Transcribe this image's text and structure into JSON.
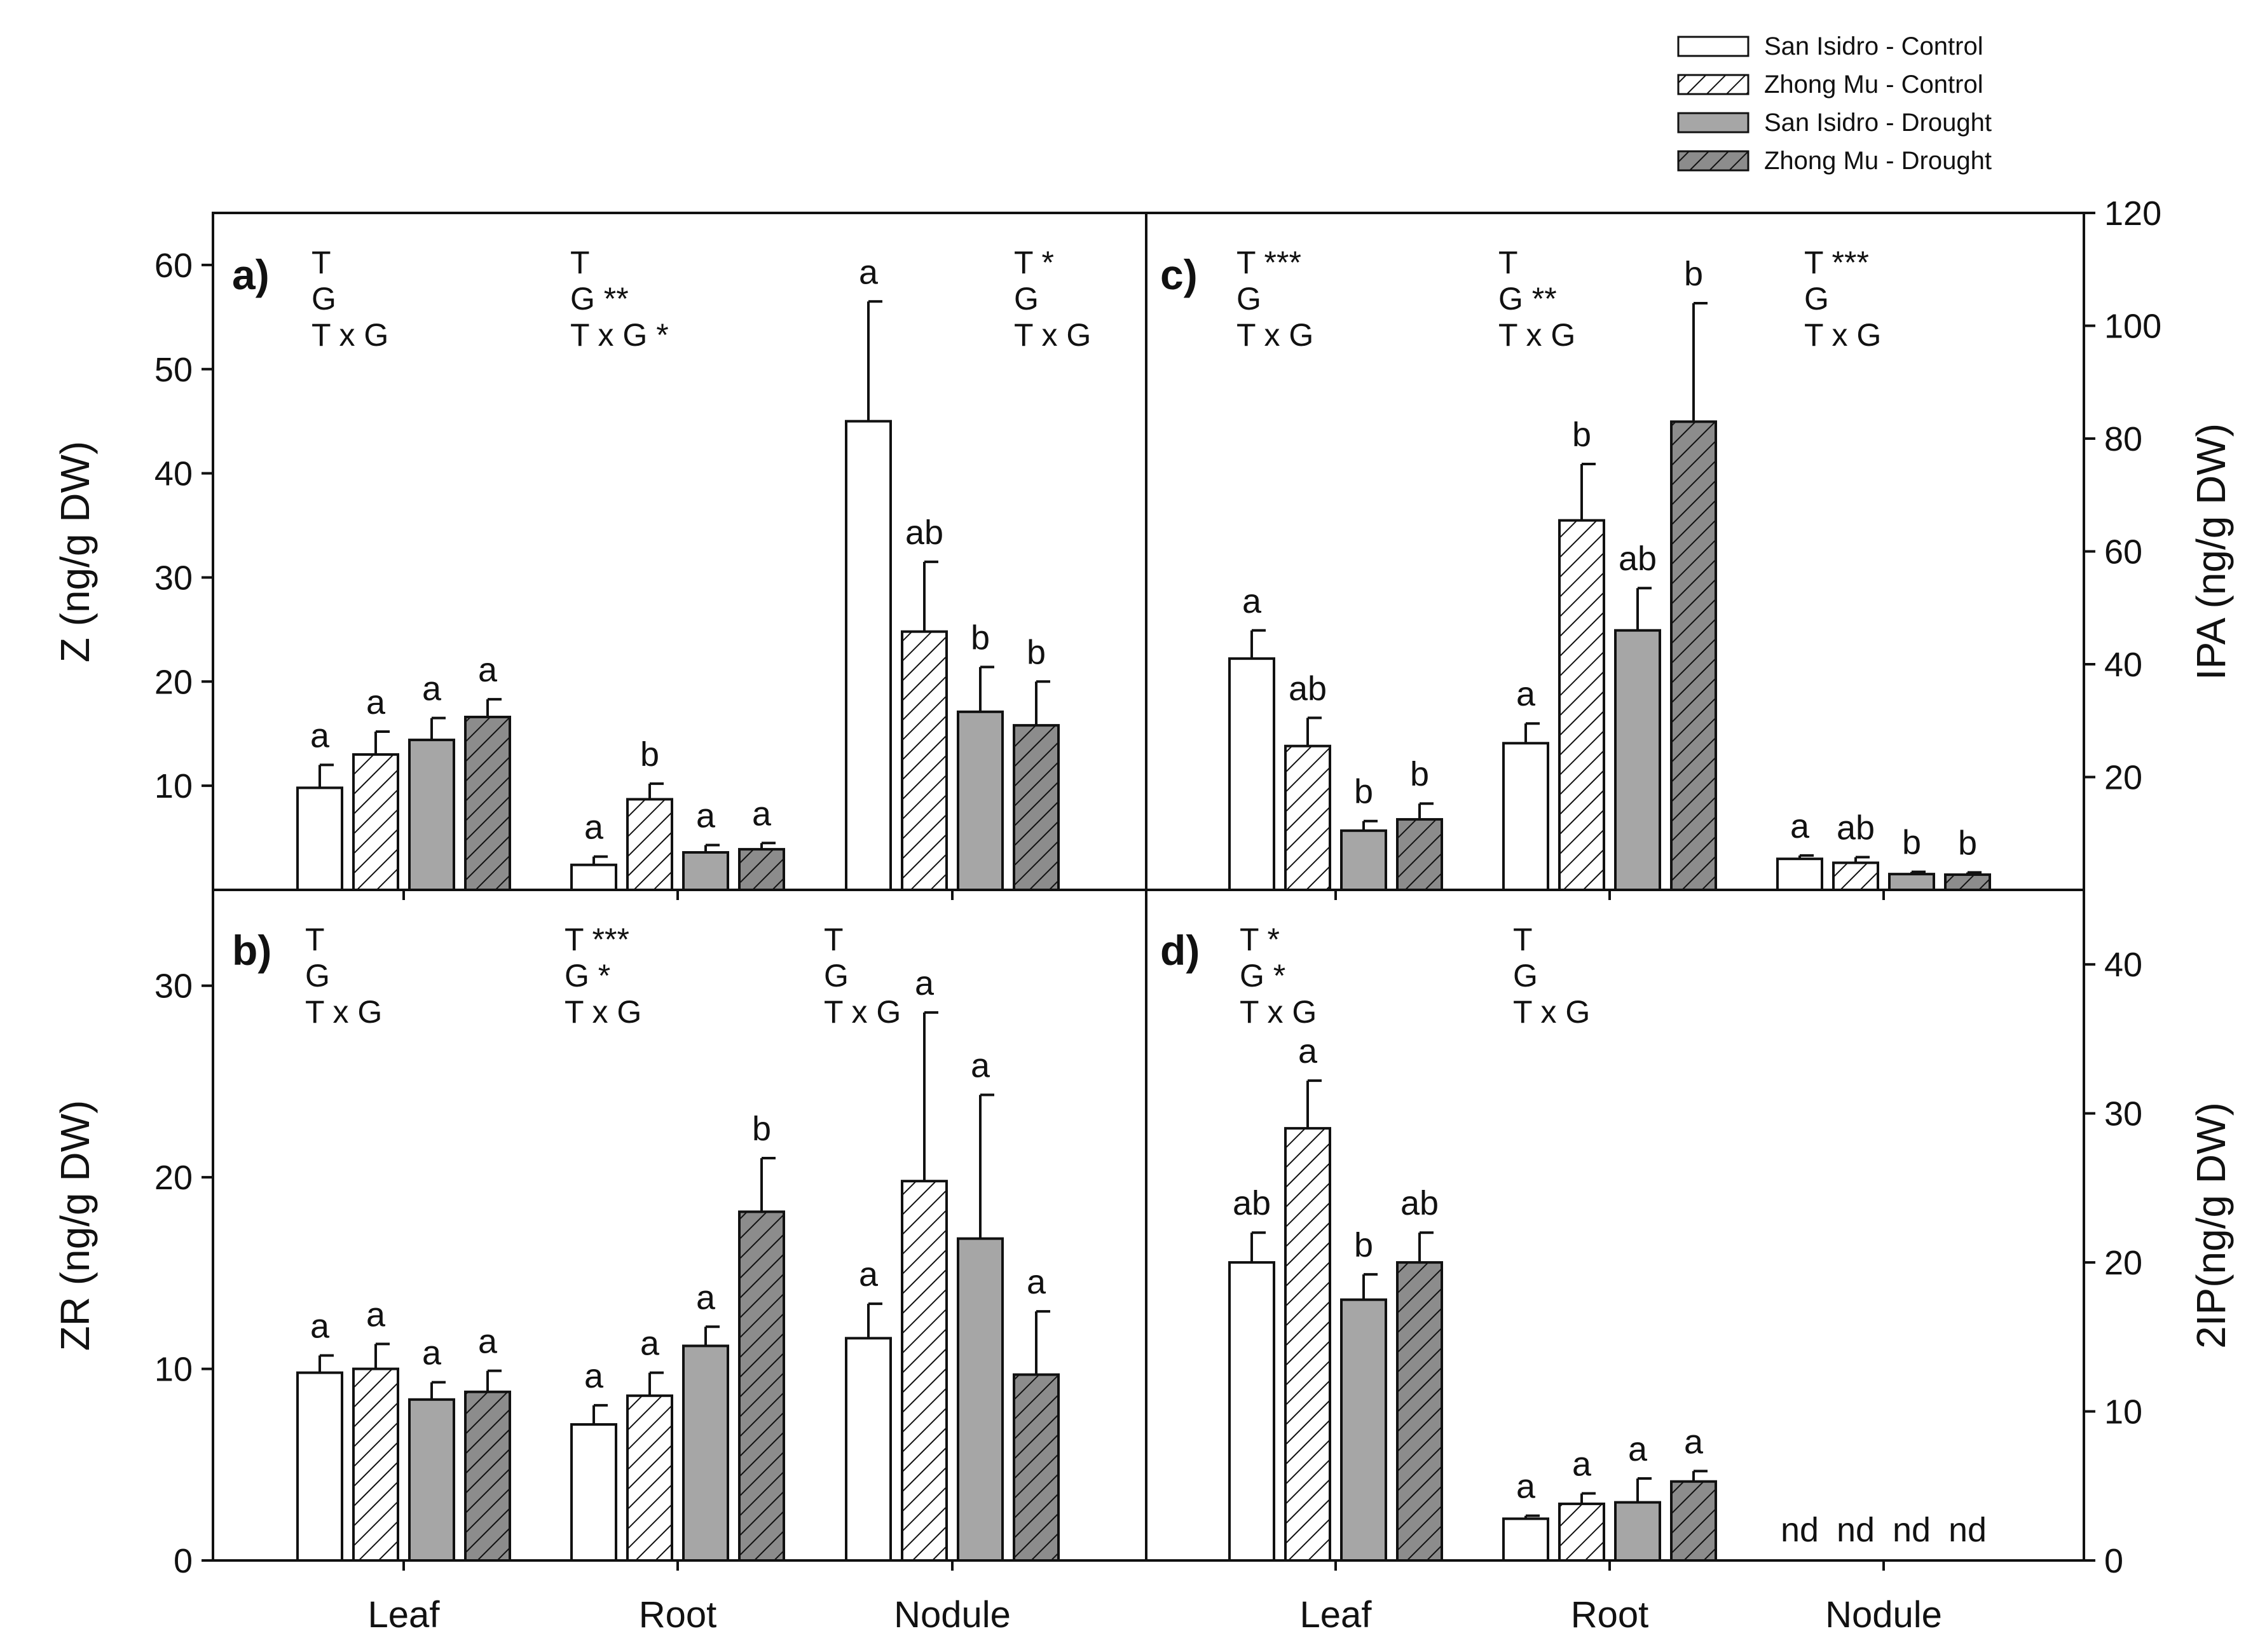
{
  "legend": [
    {
      "name": "San Isidro - Control",
      "fill": "white"
    },
    {
      "name": "Zhong Mu - Control",
      "fill": "hatch"
    },
    {
      "name": "San Isidro - Drought",
      "fill": "gray"
    },
    {
      "name": "Zhong Mu - Drought",
      "fill": "hatchgray"
    }
  ],
  "colors": {
    "gray": "#a6a6a6",
    "edge": "#111111",
    "background": "#ffffff"
  },
  "categories": [
    "Leaf",
    "Root",
    "Nodule"
  ],
  "chart_data": [
    {
      "id": "a",
      "type": "bar",
      "panel_label": "a)",
      "ylabel": "Z (ng/g DW)",
      "ylim": [
        0,
        65
      ],
      "yticks": [
        10,
        20,
        30,
        40,
        50,
        60
      ],
      "axis_side": "left",
      "categories": [
        "Leaf",
        "Root",
        "Nodule"
      ],
      "series": [
        {
          "name": "San Isidro - Control",
          "values": [
            9.8,
            2.4,
            45.0
          ],
          "errors": [
            2.2,
            0.8,
            11.5
          ]
        },
        {
          "name": "Zhong Mu - Control",
          "values": [
            13.0,
            8.7,
            24.8
          ],
          "errors": [
            2.2,
            1.5,
            6.7
          ]
        },
        {
          "name": "San Isidro - Drought",
          "values": [
            14.4,
            3.6,
            17.1
          ],
          "errors": [
            2.1,
            0.7,
            4.3
          ]
        },
        {
          "name": "Zhong Mu - Drought",
          "values": [
            16.6,
            3.9,
            15.8
          ],
          "errors": [
            1.7,
            0.6,
            4.2
          ]
        }
      ],
      "letters": [
        [
          "a",
          "a",
          "a",
          "a"
        ],
        [
          "a",
          "b",
          "a",
          "a"
        ],
        [
          "a",
          "ab",
          "b",
          "b"
        ]
      ],
      "stats": [
        [
          "T",
          "G",
          "T x G"
        ],
        [
          "T",
          "G **",
          "T x G *"
        ],
        [
          "T *",
          "G",
          "T x G"
        ]
      ]
    },
    {
      "id": "b",
      "type": "bar",
      "panel_label": "b)",
      "ylabel": "ZR (ng/g DW)",
      "ylim": [
        0,
        35
      ],
      "yticks": [
        0,
        10,
        20,
        30
      ],
      "axis_side": "left",
      "categories": [
        "Leaf",
        "Root",
        "Nodule"
      ],
      "series": [
        {
          "name": "San Isidro - Control",
          "values": [
            9.8,
            7.1,
            11.6
          ],
          "errors": [
            0.9,
            1.0,
            1.8
          ]
        },
        {
          "name": "Zhong Mu - Control",
          "values": [
            10.0,
            8.6,
            19.8
          ],
          "errors": [
            1.3,
            1.2,
            8.8
          ]
        },
        {
          "name": "San Isidro - Drought",
          "values": [
            8.4,
            11.2,
            16.8
          ],
          "errors": [
            0.9,
            1.0,
            7.5
          ]
        },
        {
          "name": "Zhong Mu - Drought",
          "values": [
            8.8,
            18.2,
            9.7
          ],
          "errors": [
            1.1,
            2.8,
            3.3
          ]
        }
      ],
      "letters": [
        [
          "a",
          "a",
          "a",
          "a"
        ],
        [
          "a",
          "a",
          "a",
          "b"
        ],
        [
          "a",
          "a",
          "a",
          "a"
        ]
      ],
      "stats": [
        [
          "T",
          "G",
          "T x G"
        ],
        [
          "T ***",
          "G *",
          "T x G"
        ],
        [
          "T",
          "G",
          "T x G"
        ]
      ]
    },
    {
      "id": "c",
      "type": "bar",
      "panel_label": "c)",
      "ylabel": "IPA (ng/g DW)",
      "ylim": [
        0,
        120
      ],
      "yticks": [
        20,
        40,
        60,
        80,
        100,
        120
      ],
      "axis_side": "right",
      "categories": [
        "Leaf",
        "Root",
        "Nodule"
      ],
      "series": [
        {
          "name": "San Isidro - Control",
          "values": [
            41,
            26,
            5.5
          ],
          "errors": [
            5,
            3.5,
            0.6
          ]
        },
        {
          "name": "Zhong Mu - Control",
          "values": [
            25.5,
            65.5,
            4.8
          ],
          "errors": [
            5,
            10,
            1.0
          ]
        },
        {
          "name": "San Isidro - Drought",
          "values": [
            10.5,
            46,
            2.8
          ],
          "errors": [
            1.7,
            7.5,
            0.4
          ]
        },
        {
          "name": "Zhong Mu - Drought",
          "values": [
            12.5,
            83,
            2.7
          ],
          "errors": [
            2.8,
            21,
            0.4
          ]
        }
      ],
      "letters": [
        [
          "a",
          "ab",
          "b",
          "b"
        ],
        [
          "a",
          "b",
          "ab",
          "b"
        ],
        [
          "a",
          "ab",
          "b",
          "b"
        ]
      ],
      "stats": [
        [
          "T ***",
          "G",
          "T x G"
        ],
        [
          "T",
          "G **",
          "T x G"
        ],
        [
          "T ***",
          "G",
          "T x G"
        ]
      ]
    },
    {
      "id": "d",
      "type": "bar",
      "panel_label": "d)",
      "ylabel": "2IP(ng/g DW)",
      "ylim": [
        0,
        45
      ],
      "yticks": [
        0,
        10,
        20,
        30,
        40
      ],
      "axis_side": "right",
      "categories": [
        "Leaf",
        "Root",
        "Nodule"
      ],
      "series": [
        {
          "name": "San Isidro - Control",
          "values": [
            20.0,
            2.8,
            null
          ],
          "errors": [
            2.0,
            0.2,
            null
          ]
        },
        {
          "name": "Zhong Mu - Control",
          "values": [
            29.0,
            3.8,
            null
          ],
          "errors": [
            3.2,
            0.7,
            null
          ]
        },
        {
          "name": "San Isidro - Drought",
          "values": [
            17.5,
            3.9,
            null
          ],
          "errors": [
            1.7,
            1.6,
            null
          ]
        },
        {
          "name": "Zhong Mu - Drought",
          "values": [
            20.0,
            5.3,
            null
          ],
          "errors": [
            2.0,
            0.7,
            null
          ]
        }
      ],
      "letters": [
        [
          "ab",
          "a",
          "b",
          "ab"
        ],
        [
          "a",
          "a",
          "a",
          "a"
        ],
        [
          "nd",
          "nd",
          "nd",
          "nd"
        ]
      ],
      "stats": [
        [
          "T *",
          "G *",
          "T x G"
        ],
        [
          "T",
          "G",
          "T x G"
        ],
        []
      ]
    }
  ]
}
